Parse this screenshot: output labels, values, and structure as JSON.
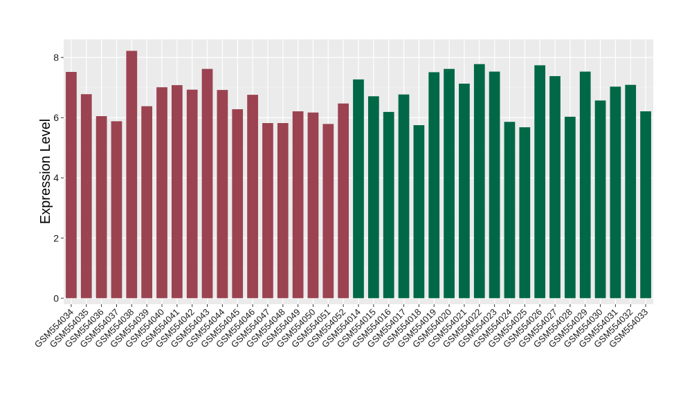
{
  "chart_data": {
    "type": "bar",
    "title": "",
    "xlabel": "",
    "ylabel": "Expression Level",
    "ylim": [
      -0.2,
      8.6
    ],
    "yticks": [
      0,
      2,
      4,
      6,
      8
    ],
    "grid": true,
    "background": "#ebebeb",
    "group_colors": [
      "#9b4351",
      "#006846"
    ],
    "categories": [
      "GSM554034",
      "GSM554035",
      "GSM554036",
      "GSM554037",
      "GSM554038",
      "GSM554039",
      "GSM554040",
      "GSM554041",
      "GSM554042",
      "GSM554043",
      "GSM554044",
      "GSM554045",
      "GSM554046",
      "GSM554047",
      "GSM554048",
      "GSM554049",
      "GSM554050",
      "GSM554051",
      "GSM554052",
      "GSM554014",
      "GSM554015",
      "GSM554016",
      "GSM554017",
      "GSM554018",
      "GSM554019",
      "GSM554020",
      "GSM554021",
      "GSM554022",
      "GSM554023",
      "GSM554024",
      "GSM554025",
      "GSM554026",
      "GSM554027",
      "GSM554028",
      "GSM554029",
      "GSM554030",
      "GSM554031",
      "GSM554032",
      "GSM554033"
    ],
    "values": [
      7.52,
      6.78,
      6.05,
      5.88,
      8.22,
      6.38,
      7.01,
      7.08,
      6.93,
      7.62,
      6.92,
      6.28,
      6.76,
      5.82,
      5.82,
      6.21,
      6.17,
      5.79,
      6.47,
      7.27,
      6.71,
      6.19,
      6.77,
      5.75,
      7.51,
      7.62,
      7.13,
      7.78,
      7.53,
      5.86,
      5.68,
      7.74,
      7.38,
      6.03,
      7.53,
      6.57,
      7.03,
      7.09,
      6.21
    ],
    "group": [
      0,
      0,
      0,
      0,
      0,
      0,
      0,
      0,
      0,
      0,
      0,
      0,
      0,
      0,
      0,
      0,
      0,
      0,
      0,
      1,
      1,
      1,
      1,
      1,
      1,
      1,
      1,
      1,
      1,
      1,
      1,
      1,
      1,
      1,
      1,
      1,
      1,
      1,
      1
    ]
  }
}
